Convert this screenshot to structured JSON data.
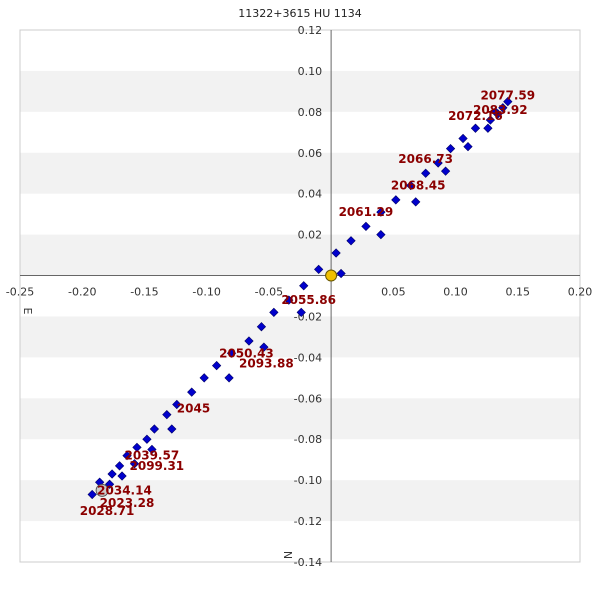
{
  "chart_data": {
    "type": "scatter",
    "title": "11322+3615 HU 1134",
    "xlabel": "E",
    "ylabel": "N",
    "xlim": [
      -0.25,
      0.2
    ],
    "ylim": [
      -0.14,
      0.12
    ],
    "x_ticks": [
      -0.25,
      -0.2,
      -0.15,
      -0.1,
      -0.05,
      0.05,
      0.1,
      0.15,
      0.2
    ],
    "x_tick_labels": [
      "-0.25",
      "-0.20",
      "-0.15",
      "-0.10",
      "-0.05",
      "0.05",
      "0.10",
      "0.15",
      "0.20"
    ],
    "y_ticks": [
      0.12,
      0.1,
      0.08,
      0.06,
      0.04,
      0.02,
      -0.02,
      -0.04,
      -0.06,
      -0.08,
      -0.1,
      -0.12,
      -0.14
    ],
    "y_tick_labels": [
      "0.12",
      "0.10",
      "0.08",
      "0.06",
      "0.04",
      "0.02",
      "-0.02",
      "-0.04",
      "-0.06",
      "-0.08",
      "-0.10",
      "-0.12",
      "-0.14"
    ],
    "grid": "alternating horizontal bands",
    "colors": {
      "points": "#0000cc",
      "primary": "#f0c000",
      "secondary_ref": "#cccccc",
      "labels": "#8b0000",
      "band": "#f2f2f2"
    },
    "primary_star": {
      "x": 0,
      "y": 0
    },
    "reference_point": {
      "x": -0.184,
      "y": -0.105
    },
    "series": [
      {
        "points": [
          [
            0.142,
            0.085
          ],
          [
            0.138,
            0.082
          ],
          [
            0.134,
            0.079
          ],
          [
            0.128,
            0.076
          ],
          [
            0.132,
            0.08
          ],
          [
            0.126,
            0.072
          ],
          [
            0.116,
            0.072
          ],
          [
            0.11,
            0.063
          ],
          [
            0.106,
            0.067
          ],
          [
            0.096,
            0.062
          ],
          [
            0.092,
            0.051
          ],
          [
            0.086,
            0.055
          ],
          [
            0.076,
            0.05
          ],
          [
            0.068,
            0.036
          ],
          [
            0.064,
            0.044
          ],
          [
            0.052,
            0.037
          ],
          [
            0.04,
            0.02
          ],
          [
            0.04,
            0.031
          ],
          [
            0.028,
            0.024
          ],
          [
            0.016,
            0.017
          ],
          [
            0.004,
            0.011
          ],
          [
            0.008,
            0.001
          ],
          [
            -0.01,
            0.003
          ],
          [
            -0.022,
            -0.005
          ],
          [
            -0.024,
            -0.018
          ],
          [
            -0.034,
            -0.012
          ],
          [
            -0.046,
            -0.018
          ],
          [
            -0.056,
            -0.025
          ],
          [
            -0.054,
            -0.035
          ],
          [
            -0.066,
            -0.032
          ],
          [
            -0.082,
            -0.05
          ],
          [
            -0.08,
            -0.038
          ],
          [
            -0.092,
            -0.044
          ],
          [
            -0.102,
            -0.05
          ],
          [
            -0.112,
            -0.057
          ],
          [
            -0.124,
            -0.063
          ],
          [
            -0.128,
            -0.075
          ],
          [
            -0.132,
            -0.068
          ],
          [
            -0.142,
            -0.075
          ],
          [
            -0.148,
            -0.08
          ],
          [
            -0.144,
            -0.085
          ],
          [
            -0.156,
            -0.084
          ],
          [
            -0.158,
            -0.092
          ],
          [
            -0.164,
            -0.088
          ],
          [
            -0.17,
            -0.093
          ],
          [
            -0.168,
            -0.098
          ],
          [
            -0.176,
            -0.097
          ],
          [
            -0.178,
            -0.102
          ],
          [
            -0.186,
            -0.101
          ],
          [
            -0.192,
            -0.107
          ]
        ]
      }
    ],
    "annotations": [
      {
        "text": "2077.59",
        "x": 0.12,
        "y": 0.086
      },
      {
        "text": "2083.92",
        "x": 0.114,
        "y": 0.079
      },
      {
        "text": "2072.16",
        "x": 0.094,
        "y": 0.076
      },
      {
        "text": "2066.73",
        "x": 0.054,
        "y": 0.055
      },
      {
        "text": "2068.45",
        "x": 0.048,
        "y": 0.042
      },
      {
        "text": "2061.29",
        "x": 0.006,
        "y": 0.029
      },
      {
        "text": "2055.86",
        "x": -0.04,
        "y": -0.014
      },
      {
        "text": "2050.43",
        "x": -0.09,
        "y": -0.04
      },
      {
        "text": "2093.88",
        "x": -0.074,
        "y": -0.045
      },
      {
        "text": "2045",
        "x": -0.124,
        "y": -0.067
      },
      {
        "text": "2039.57",
        "x": -0.166,
        "y": -0.09
      },
      {
        "text": "2099.31",
        "x": -0.162,
        "y": -0.095
      },
      {
        "text": "2034.14",
        "x": -0.188,
        "y": -0.107
      },
      {
        "text": "2023.28",
        "x": -0.186,
        "y": -0.113
      },
      {
        "text": "2028.71",
        "x": -0.202,
        "y": -0.117
      }
    ]
  }
}
